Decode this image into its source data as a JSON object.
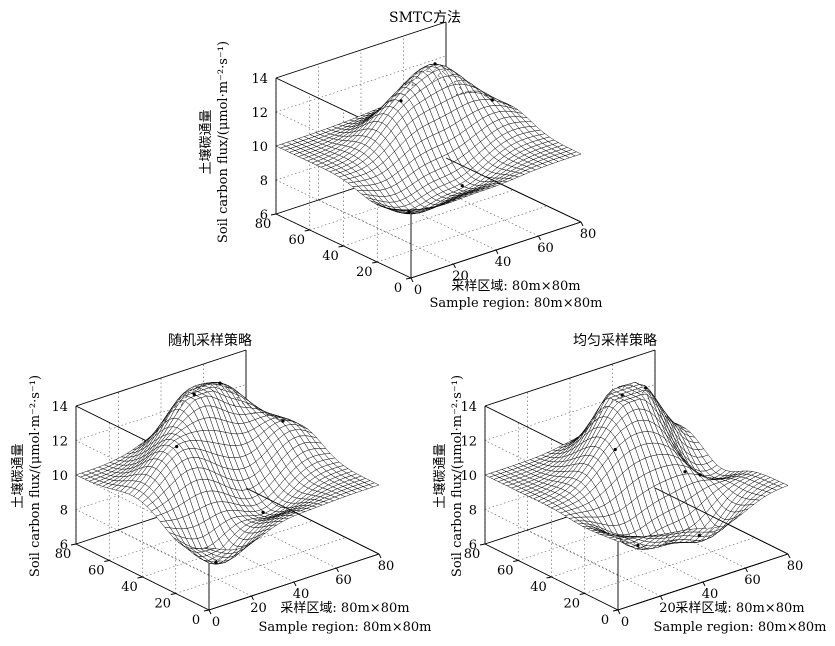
{
  "chart_data": [
    {
      "type": "surface3d",
      "title": "SMTC方法",
      "zlabel_cn": "土壤碳通量",
      "zlabel_en": "Soil carbon flux/(μmol·m⁻²·s⁻¹)",
      "xlabel_cn": "采样区域: 80m×80m",
      "xlabel_en": "Sample region: 80m×80m",
      "x_ticks": [
        "0",
        "20",
        "40",
        "60",
        "80"
      ],
      "y_ticks": [
        "0",
        "20",
        "40",
        "60",
        "80"
      ],
      "z_ticks": [
        "6",
        "8",
        "10",
        "12",
        "14"
      ],
      "xlim": [
        0,
        80
      ],
      "ylim": [
        0,
        80
      ],
      "zlim": [
        6,
        14
      ],
      "baseline": 10,
      "peaks": [
        {
          "x": 55,
          "y": 55,
          "z": 13.2
        },
        {
          "x": 35,
          "y": 50,
          "z": 12.1
        },
        {
          "x": 70,
          "y": 40,
          "z": 11.2
        },
        {
          "x": 15,
          "y": 20,
          "z": 8.4
        },
        {
          "x": 40,
          "y": 20,
          "z": 8.9
        }
      ]
    },
    {
      "type": "surface3d",
      "title": "随机采样策略",
      "zlabel_cn": "土壤碳通量",
      "zlabel_en": "Soil carbon flux/(μmol·m⁻²·s⁻¹)",
      "xlabel_cn": "采样区域: 80m×80m",
      "xlabel_en": "Sample region: 80m×80m",
      "x_ticks": [
        "0",
        "20",
        "40",
        "60",
        "80"
      ],
      "y_ticks": [
        "0",
        "20",
        "40",
        "60",
        "80"
      ],
      "z_ticks": [
        "6",
        "8",
        "10",
        "12",
        "14"
      ],
      "xlim": [
        0,
        80
      ],
      "ylim": [
        0,
        80
      ],
      "zlim": [
        6,
        14
      ],
      "baseline": 10,
      "peaks": [
        {
          "x": 40,
          "y": 60,
          "z": 13.8
        },
        {
          "x": 60,
          "y": 70,
          "z": 12.8
        },
        {
          "x": 70,
          "y": 45,
          "z": 11.8
        },
        {
          "x": 20,
          "y": 45,
          "z": 12.3
        },
        {
          "x": 15,
          "y": 15,
          "z": 7.4
        },
        {
          "x": 45,
          "y": 25,
          "z": 8.6
        }
      ]
    },
    {
      "type": "surface3d",
      "title": "均匀采样策略",
      "zlabel_cn": "土壤碳通量",
      "zlabel_en": "Soil carbon flux/(μmol·m⁻²·s⁻¹)",
      "xlabel_cn": "采样区域: 80m×80m",
      "xlabel_en": "Sample region: 80m×80m",
      "x_ticks": [
        "0",
        "20",
        "40",
        "60",
        "80"
      ],
      "y_ticks": [
        "0",
        "20",
        "40",
        "60",
        "80"
      ],
      "z_ticks": [
        "6",
        "8",
        "10",
        "12",
        "14"
      ],
      "xlim": [
        0,
        80
      ],
      "ylim": [
        0,
        80
      ],
      "zlim": [
        6,
        14
      ],
      "baseline": 10,
      "peaks": [
        {
          "x": 45,
          "y": 55,
          "z": 13.5
        },
        {
          "x": 60,
          "y": 60,
          "z": 12.5
        },
        {
          "x": 30,
          "y": 40,
          "z": 12.0
        },
        {
          "x": 55,
          "y": 30,
          "z": 11.5
        },
        {
          "x": 25,
          "y": 20,
          "z": 7.6
        },
        {
          "x": 50,
          "y": 15,
          "z": 7.2
        },
        {
          "x": 70,
          "y": 40,
          "z": 8.3
        }
      ]
    }
  ]
}
